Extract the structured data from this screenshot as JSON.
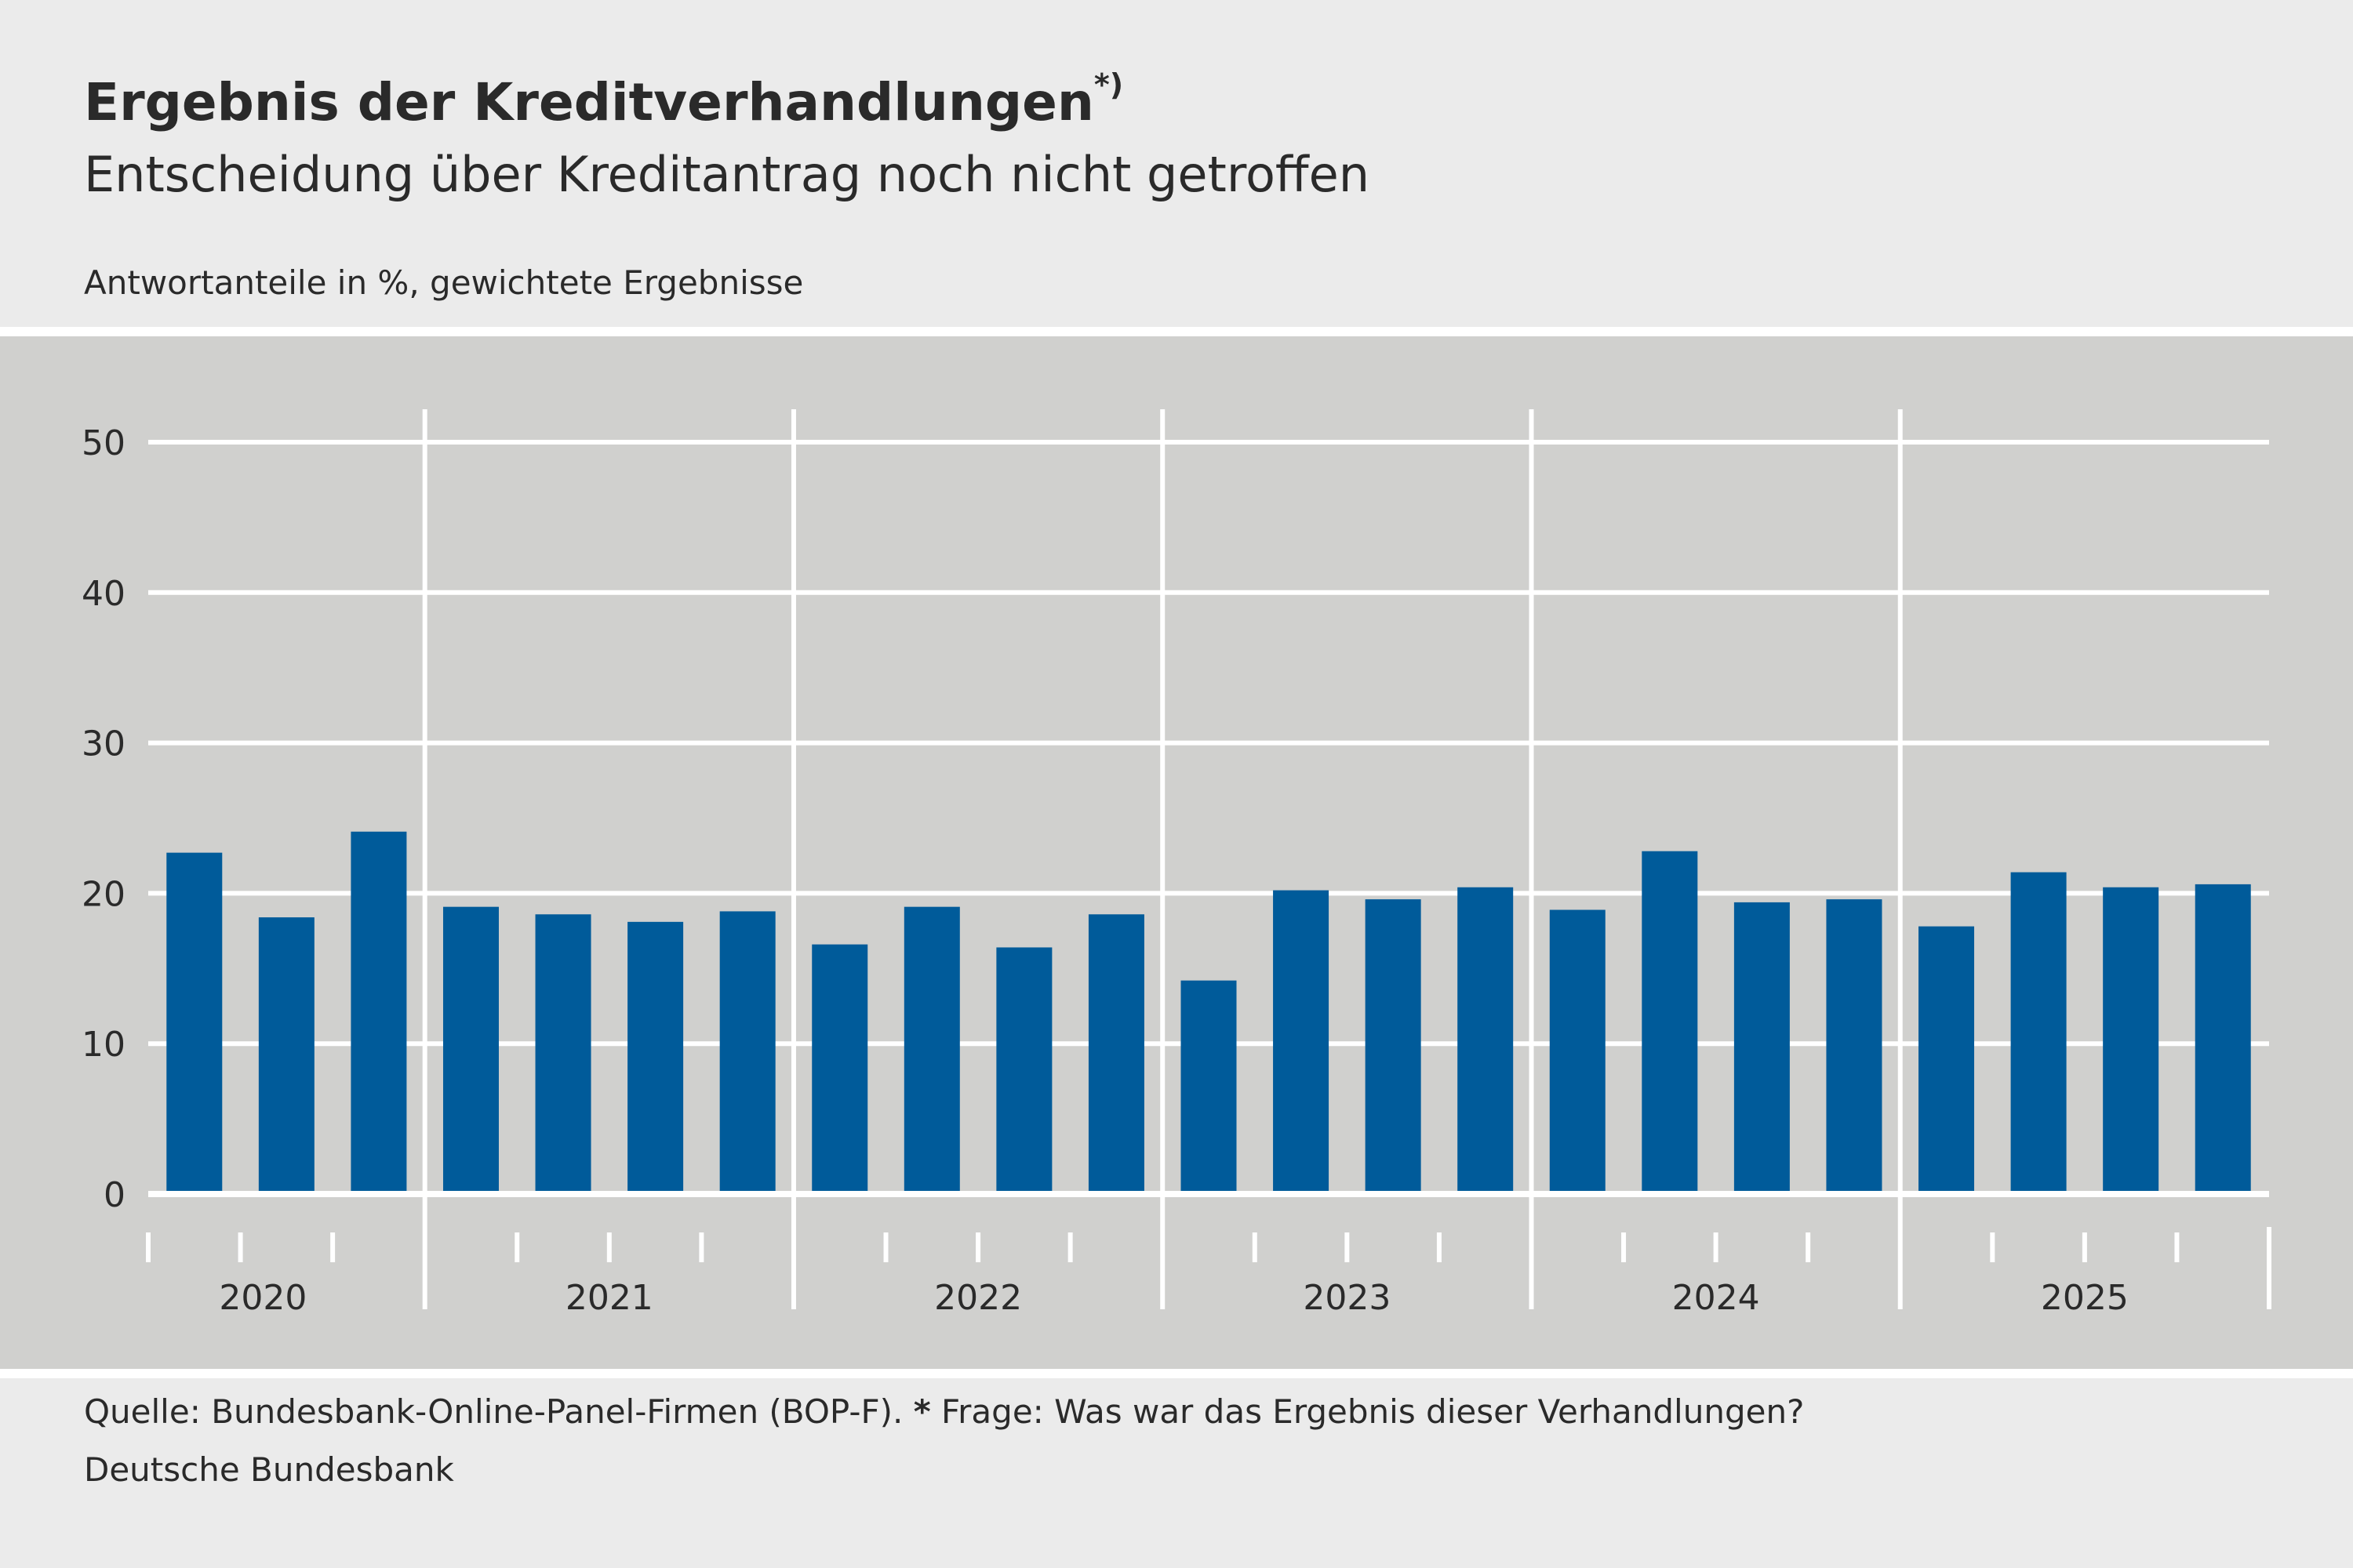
{
  "title": "Ergebnis der Kreditverhandlungen",
  "title_note": "*)",
  "subtitle": "Entscheidung über Kreditantrag noch nicht getroffen",
  "units": "Antwortanteile in %, gewichtete Ergebnisse",
  "footer": {
    "source_prefix": "Quelle: Bundesbank-Online-Panel-Firmen (BOP-F). ",
    "note_star": "*",
    "note_text": " Frage: Was war das Ergebnis dieser Verhandlungen?",
    "publisher": "Deutsche Bundesbank"
  },
  "chart_data": {
    "type": "bar",
    "title": "Ergebnis der Kreditverhandlungen",
    "subtitle": "Entscheidung über Kreditantrag noch nicht getroffen",
    "ylabel": "Antwortanteile in %, gewichtete Ergebnisse",
    "ylim": [
      0,
      50
    ],
    "yticks": [
      "0",
      "10",
      "20",
      "30",
      "40",
      "50"
    ],
    "grid": true,
    "bar_color": "#005b9a",
    "categories": [
      "2020",
      "2021",
      "2022",
      "2023",
      "2024",
      "2025"
    ],
    "groups": [
      {
        "year": "2020",
        "quarter_slots": 3,
        "values": [
          22.7,
          18.4,
          24.1
        ]
      },
      {
        "year": "2021",
        "quarter_slots": 4,
        "values": [
          19.1,
          18.6,
          18.1,
          18.8
        ]
      },
      {
        "year": "2022",
        "quarter_slots": 4,
        "values": [
          16.6,
          19.1,
          16.4,
          18.6
        ]
      },
      {
        "year": "2023",
        "quarter_slots": 4,
        "values": [
          14.2,
          20.2,
          19.6,
          20.4
        ]
      },
      {
        "year": "2024",
        "quarter_slots": 4,
        "values": [
          18.9,
          22.8,
          19.4,
          19.6
        ]
      },
      {
        "year": "2025",
        "quarter_slots": 4,
        "values": [
          17.8,
          21.4,
          20.4,
          20.6
        ]
      }
    ]
  }
}
